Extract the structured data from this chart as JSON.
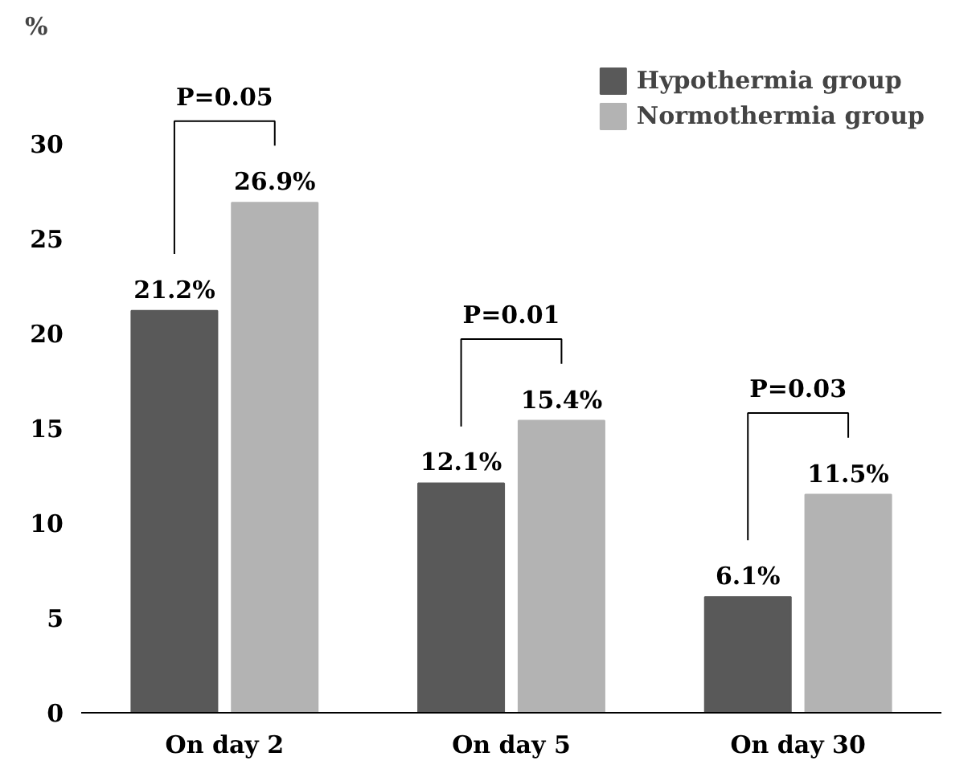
{
  "chart_data": {
    "type": "bar",
    "ylabel": "%",
    "categories": [
      "On day 2",
      "On day 5",
      "On day 30"
    ],
    "series": [
      {
        "name": "Hypothermia group",
        "color": "#595959",
        "values": [
          21.2,
          12.1,
          6.1
        ],
        "value_labels": [
          "21.2%",
          "12.1%",
          "6.1%"
        ]
      },
      {
        "name": "Normothermia group",
        "color": "#b3b3b3",
        "values": [
          26.9,
          15.4,
          11.5
        ],
        "value_labels": [
          "26.9%",
          "15.4%",
          "11.5%"
        ]
      }
    ],
    "ylim": [
      0,
      30
    ],
    "yticks": [
      0,
      5,
      10,
      15,
      20,
      25,
      30
    ],
    "grid": false,
    "legend": "top right",
    "annotations": [
      "P=0.05",
      "P=0.01",
      "P=0.03"
    ]
  }
}
